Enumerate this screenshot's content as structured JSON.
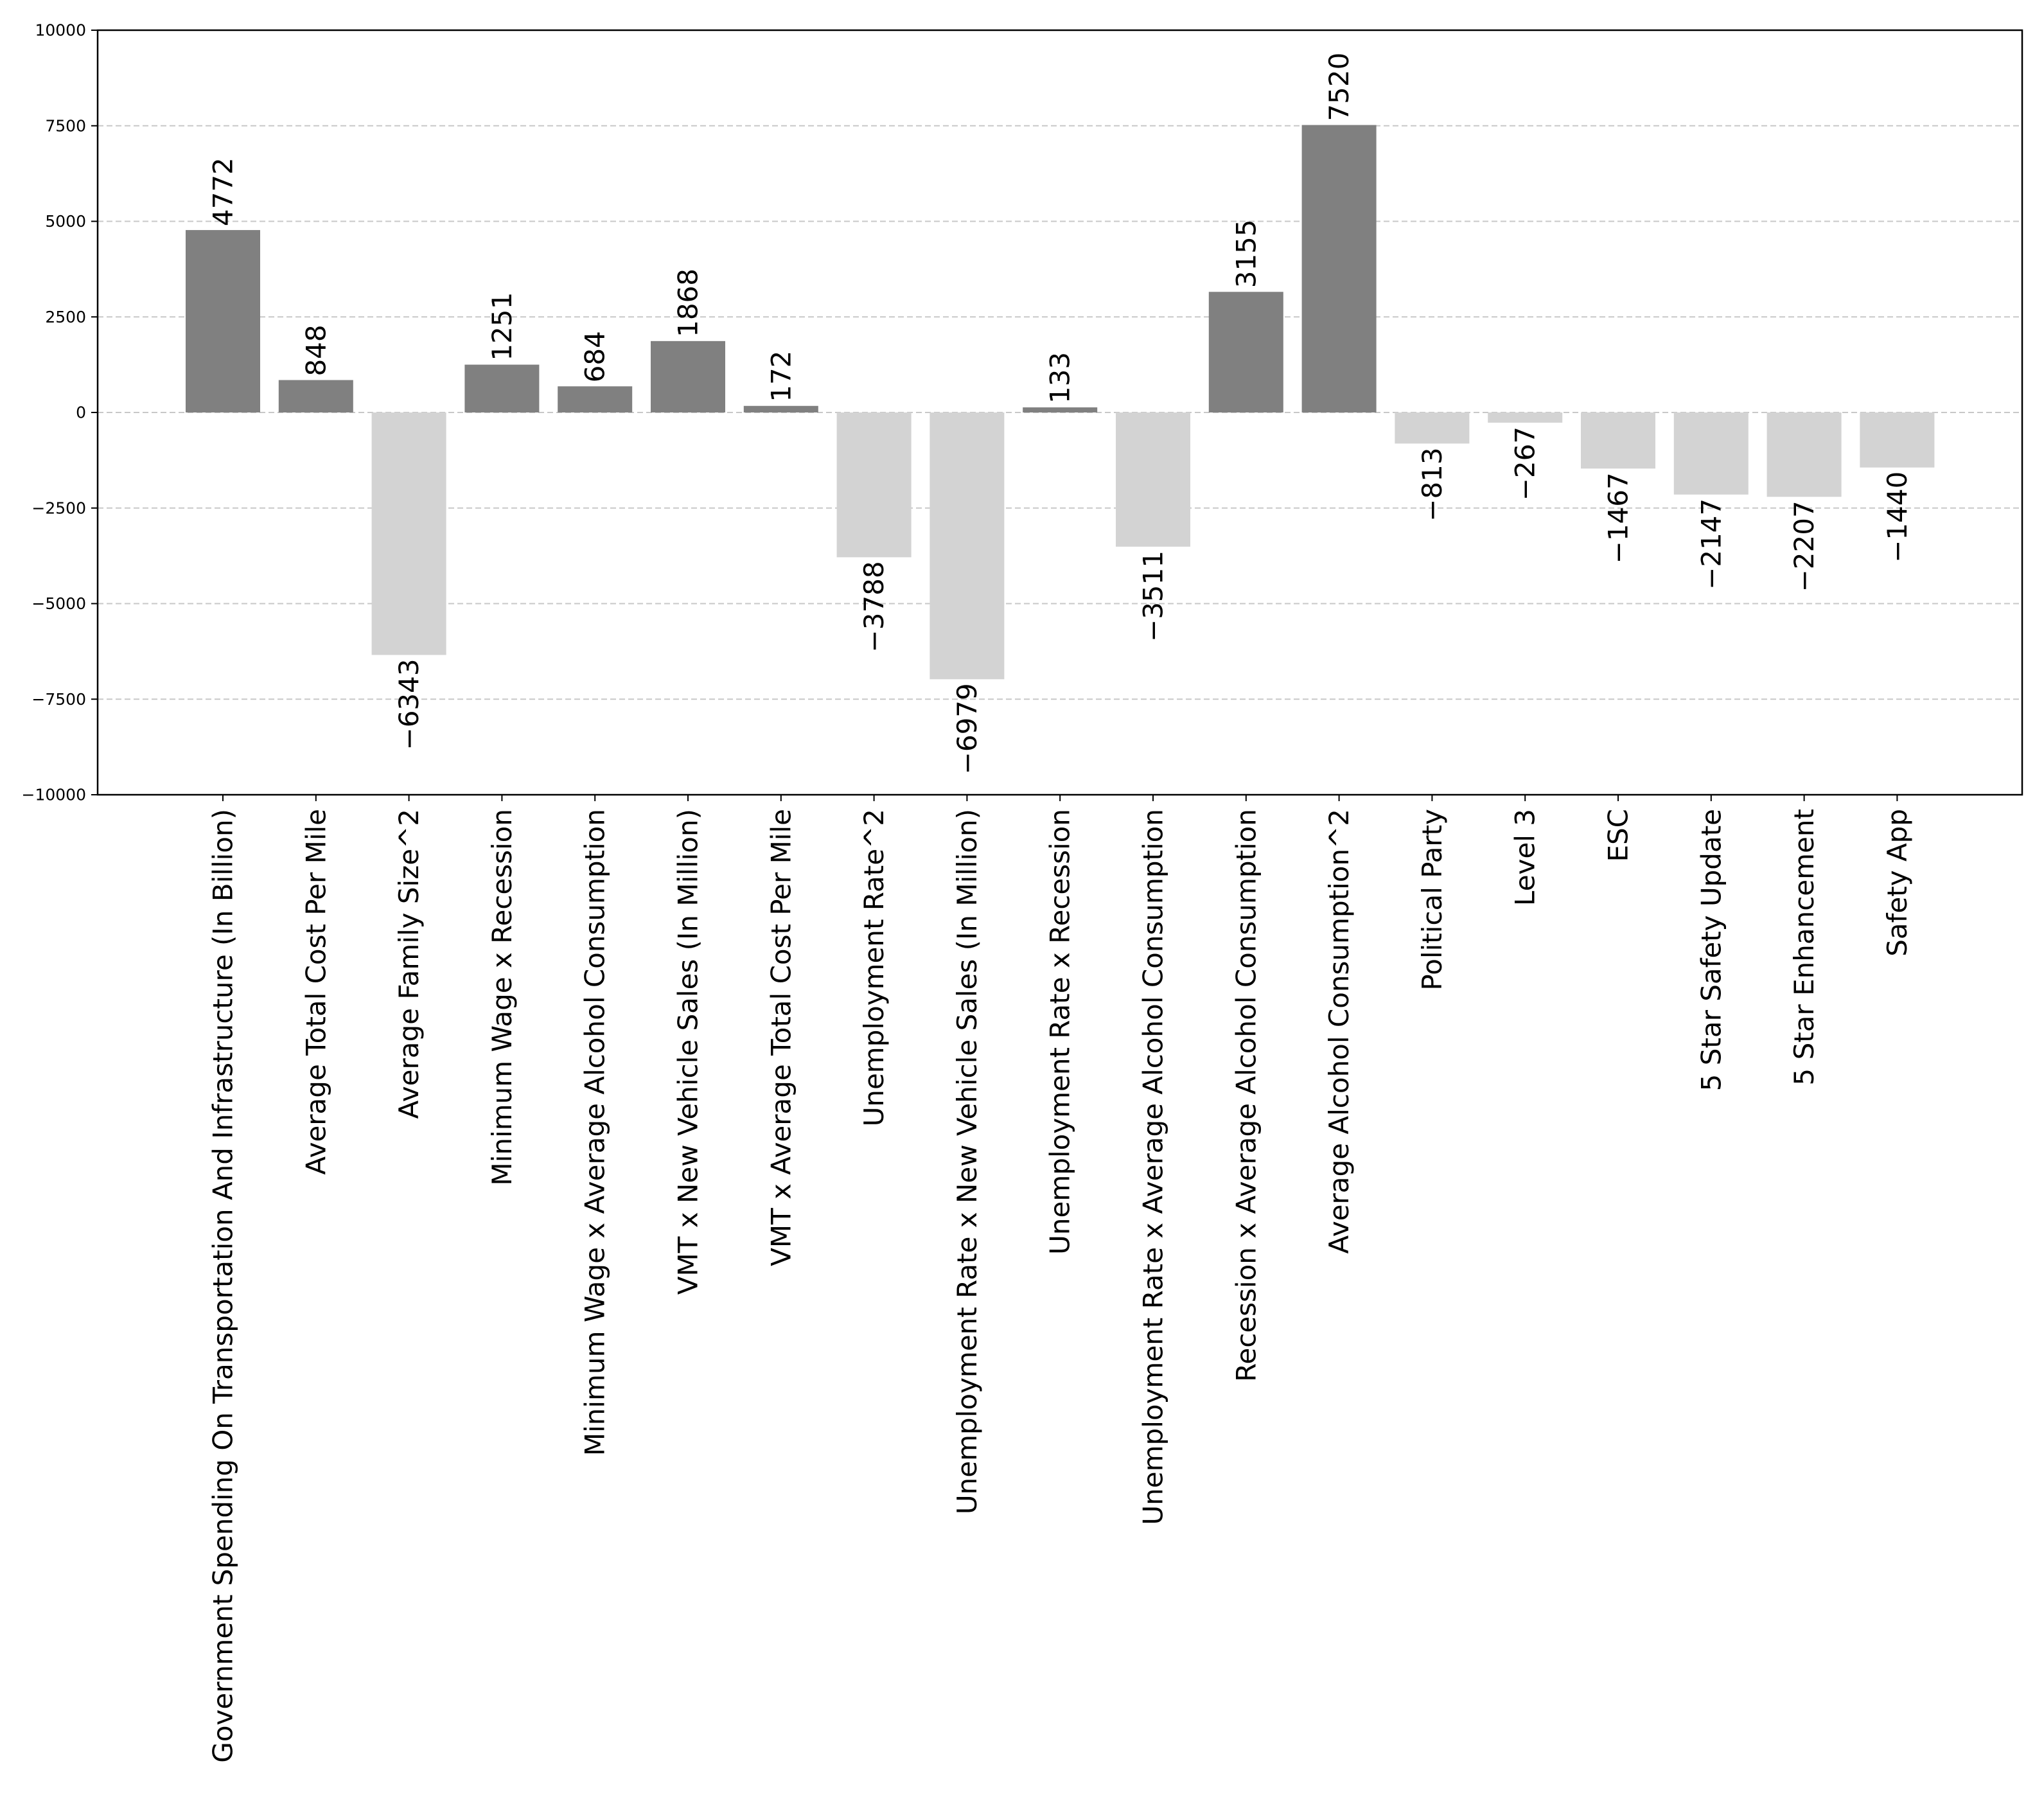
{
  "chart_data": {
    "type": "bar",
    "title": "",
    "xlabel": "",
    "ylabel": "",
    "ylim": [
      -10000,
      10000
    ],
    "yticks": [
      10000,
      7500,
      5000,
      2500,
      0,
      -2500,
      -5000,
      -7500,
      -10000
    ],
    "ytick_labels": [
      "10000",
      "7500",
      "5000",
      "2500",
      "0",
      "−2500",
      "−5000",
      "−7500",
      "−10000"
    ],
    "grid": "horizontal dashed",
    "categories": [
      "Government Spending On Transportation And Infrastructure (In Billion)",
      "Average Total Cost Per Mile",
      "Average Family Size^2",
      "Minimum Wage x Recession",
      "Minimum Wage x Average Alcohol Consumption",
      "VMT x New Vehicle Sales (In Million)",
      "VMT x Average Total Cost Per Mile",
      "Unemployment Rate^2",
      "Unemployment Rate x New Vehicle Sales (In Million)",
      "Unemployment Rate x Recession",
      "Unemployment Rate x Average Alcohol Consumption",
      "Recession x Average Alcohol Consumption",
      "Average Alcohol Consumption^2",
      "Political Party",
      "Level 3",
      "ESC",
      "5 Star Safety Update",
      "5 Star Enhancement",
      "Safety App"
    ],
    "values": [
      4772,
      848,
      -6343,
      1251,
      684,
      1868,
      172,
      -3788,
      -6979,
      133,
      -3511,
      3155,
      7520,
      -813,
      -267,
      -1467,
      -2147,
      -2207,
      -1440
    ],
    "value_labels": [
      "4772",
      "848",
      "−6343",
      "1251",
      "684",
      "1868",
      "172",
      "−3788",
      "−6979",
      "133",
      "−3511",
      "3155",
      "7520",
      "−813",
      "−267",
      "−1467",
      "−2147",
      "−2207",
      "−1440"
    ],
    "positive_color": "#808080",
    "negative_color": "#d3d3d3",
    "grid_color": "#c8c8c8"
  }
}
